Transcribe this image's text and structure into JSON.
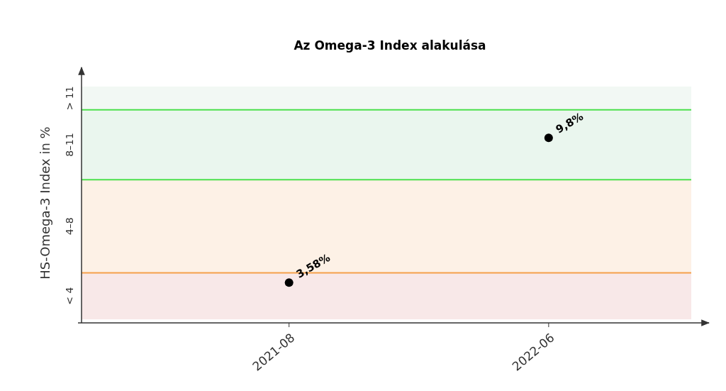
{
  "chart_data": {
    "type": "scatter",
    "title": "Az Omega-3 Index alakulása",
    "ylabel": "HS-Omega-3 Index in %",
    "x": [
      "2021-08",
      "2022-06"
    ],
    "values": [
      3.58,
      9.8
    ],
    "color": "#000000",
    "marker": "circle",
    "value_labels": [
      "3,58%",
      "9,8%"
    ],
    "xlim": [
      "2020-12-01",
      "2022-11-15"
    ],
    "xticks": [
      "2021-08",
      "2022-06"
    ],
    "bands": [
      {
        "axis": "y",
        "from": 2,
        "to": 4,
        "color": "#f8e8e8",
        "label": "< 4"
      },
      {
        "axis": "y",
        "from": 4,
        "to": 8,
        "color": "#fdf1e6",
        "label": "4–8"
      },
      {
        "axis": "y",
        "from": 8,
        "to": 11,
        "color": "#eaf6ee",
        "label": "8–11"
      },
      {
        "axis": "y",
        "from": 11,
        "to": 12,
        "color": "#f2f8f4",
        "label": "> 11"
      }
    ],
    "ref_lines": [
      {
        "axis": "y",
        "value": 4,
        "color": "#f5a04a"
      },
      {
        "axis": "y",
        "value": 8,
        "color": "#4ce04c"
      },
      {
        "axis": "y",
        "value": 11,
        "color": "#4ce04c"
      }
    ],
    "grid": false
  }
}
